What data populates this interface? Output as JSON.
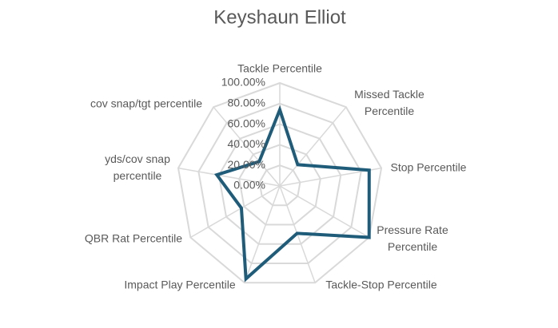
{
  "chart_data": {
    "type": "radar",
    "title": "Keyshaun Elliot",
    "categories": [
      "Tackle Percentile",
      "Missed Tackle Percentile",
      "Stop Percentile",
      "Pressure Rate Percentile",
      "Tackle-Stop Percentile",
      "Impact Play Percentile",
      "QBR Rat Percentile",
      "yds/cov snap percentile",
      "cov snap/tgt percentile"
    ],
    "values": [
      74,
      27,
      88,
      100,
      49,
      96,
      43,
      62,
      31
    ],
    "color": "#1f5c7a",
    "ylim": [
      0,
      100
    ],
    "yticks": [
      {
        "value": 0,
        "label": "0.00%"
      },
      {
        "value": 20,
        "label": "20.00%"
      },
      {
        "value": 40,
        "label": "40.00%"
      },
      {
        "value": 60,
        "label": "60.00%"
      },
      {
        "value": 80,
        "label": "80.00%"
      },
      {
        "value": 100,
        "label": "100.00%"
      }
    ],
    "grid": true
  }
}
